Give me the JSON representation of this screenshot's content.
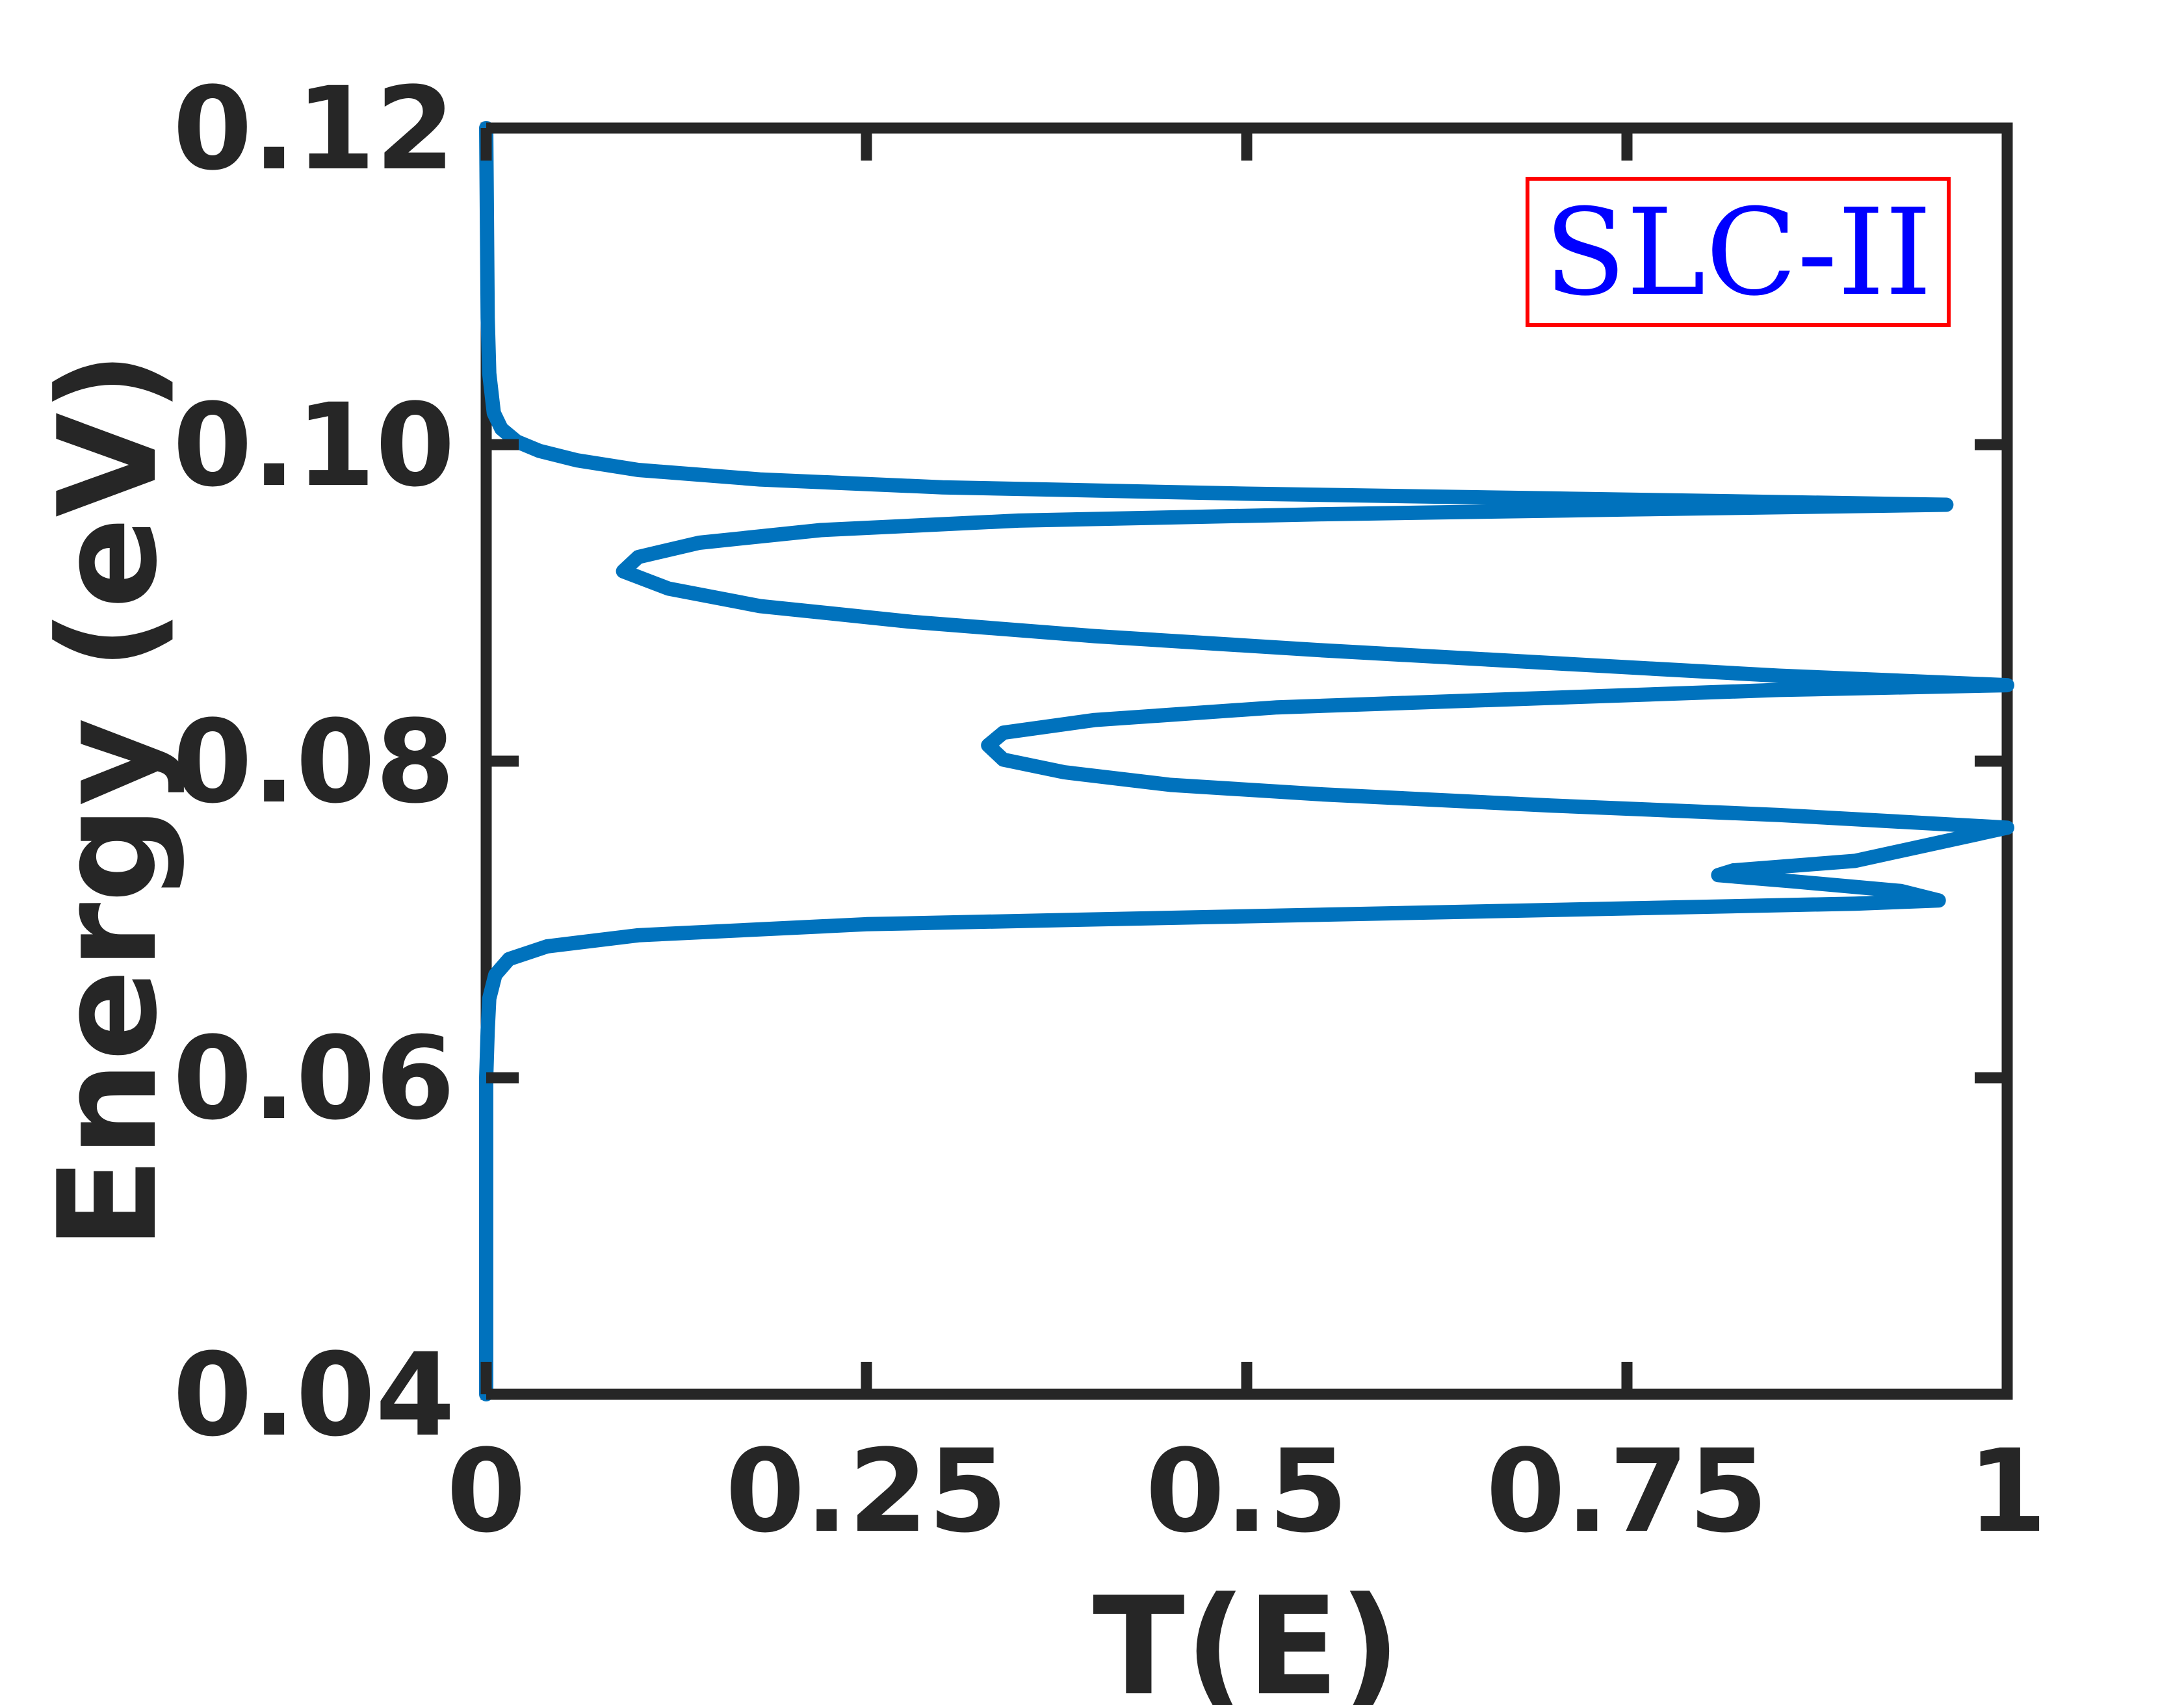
{
  "chart_data": {
    "type": "line",
    "title": "",
    "xlabel": "T(E)",
    "ylabel": "Energy (eV)",
    "xlim": [
      0,
      1
    ],
    "ylim": [
      0.04,
      0.12
    ],
    "x_ticks": [
      0,
      0.25,
      0.5,
      0.75,
      1
    ],
    "x_tick_labels": [
      "0",
      "0.25",
      "0.5",
      "0.75",
      "1"
    ],
    "y_ticks": [
      0.04,
      0.06,
      0.08,
      0.1,
      0.12
    ],
    "y_tick_labels": [
      "0.04",
      "0.06",
      "0.08",
      "0.10",
      "0.12"
    ],
    "grid": false,
    "box": true,
    "annotation": {
      "text": "SLC-II",
      "text_color": "#0000ff",
      "border_color": "#ff0000",
      "placement": "top-right"
    },
    "series": [
      {
        "color": "#0072bd",
        "points": [
          [
            0.0,
            0.04
          ],
          [
            0.0,
            0.06
          ],
          [
            0.001,
            0.063
          ],
          [
            0.002,
            0.065
          ],
          [
            0.006,
            0.0665
          ],
          [
            0.015,
            0.0675
          ],
          [
            0.04,
            0.0683
          ],
          [
            0.1,
            0.069
          ],
          [
            0.25,
            0.0697
          ],
          [
            0.5,
            0.0702
          ],
          [
            0.75,
            0.0707
          ],
          [
            0.9,
            0.071
          ],
          [
            0.955,
            0.0712
          ],
          [
            0.93,
            0.0718
          ],
          [
            0.86,
            0.0724
          ],
          [
            0.81,
            0.0728
          ],
          [
            0.82,
            0.0731
          ],
          [
            0.9,
            0.0737
          ],
          [
            1.0,
            0.0758
          ],
          [
            0.85,
            0.0766
          ],
          [
            0.7,
            0.0772
          ],
          [
            0.55,
            0.0779
          ],
          [
            0.45,
            0.0785
          ],
          [
            0.38,
            0.0793
          ],
          [
            0.34,
            0.0801
          ],
          [
            0.33,
            0.081
          ],
          [
            0.34,
            0.0818
          ],
          [
            0.4,
            0.0826
          ],
          [
            0.52,
            0.0834
          ],
          [
            0.7,
            0.084
          ],
          [
            0.85,
            0.0845
          ],
          [
            1.0,
            0.0848
          ],
          [
            0.85,
            0.0854
          ],
          [
            0.7,
            0.0862
          ],
          [
            0.55,
            0.087
          ],
          [
            0.4,
            0.0879
          ],
          [
            0.28,
            0.0888
          ],
          [
            0.18,
            0.0898
          ],
          [
            0.12,
            0.0909
          ],
          [
            0.09,
            0.092
          ],
          [
            0.1,
            0.0929
          ],
          [
            0.14,
            0.0938
          ],
          [
            0.22,
            0.0946
          ],
          [
            0.35,
            0.0952
          ],
          [
            0.55,
            0.0956
          ],
          [
            0.75,
            0.0959
          ],
          [
            0.96,
            0.0962
          ],
          [
            0.7,
            0.0966
          ],
          [
            0.5,
            0.0969
          ],
          [
            0.3,
            0.0973
          ],
          [
            0.18,
            0.0978
          ],
          [
            0.1,
            0.0984
          ],
          [
            0.06,
            0.099
          ],
          [
            0.035,
            0.0996
          ],
          [
            0.02,
            0.1002
          ],
          [
            0.01,
            0.101
          ],
          [
            0.005,
            0.102
          ],
          [
            0.002,
            0.1045
          ],
          [
            0.001,
            0.108
          ],
          [
            0.0,
            0.12
          ]
        ]
      }
    ]
  }
}
